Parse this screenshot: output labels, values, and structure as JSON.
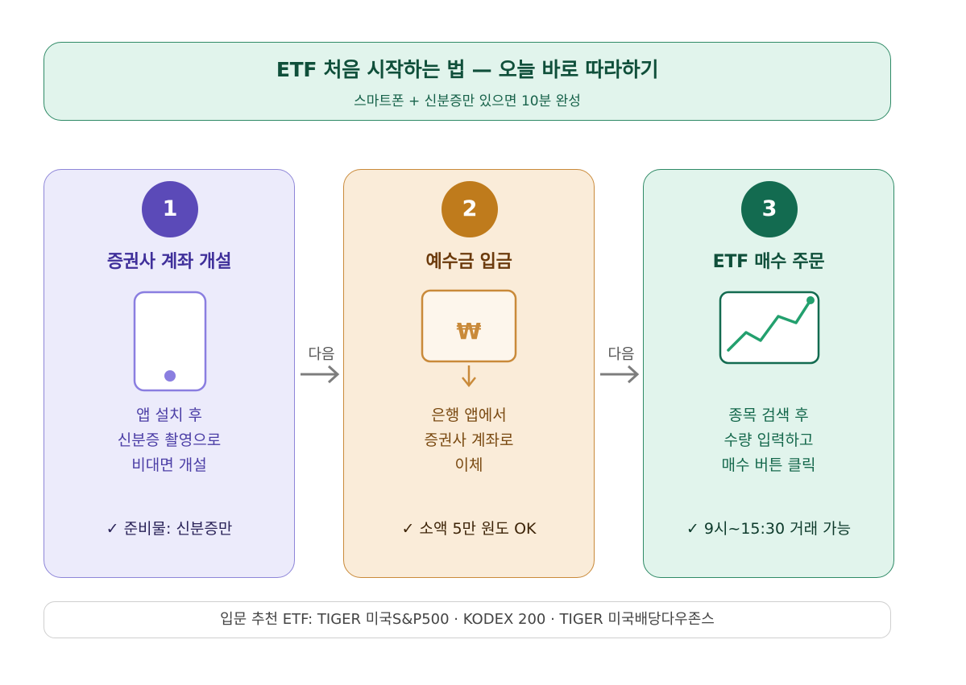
{
  "header": {
    "title": "ETF 처음 시작하는 법 — 오늘 바로 따라하기",
    "subtitle": "스마트폰 + 신분증만 있으면 10분 완성"
  },
  "steps": [
    {
      "number": "1",
      "title": "증권사 계좌 개설",
      "icon": "smartphone-icon",
      "desc": [
        "앱 설치 후",
        "신분증 촬영으로",
        "비대면 개설"
      ],
      "note": "✓ 준비물: 신분증만",
      "color": "#5b4ab8"
    },
    {
      "number": "2",
      "title": "예수금 입금",
      "icon": "won-deposit-icon",
      "icon_symbol": "₩",
      "desc": [
        "은행 앱에서",
        "증권사 계좌로",
        "이체"
      ],
      "note": "✓ 소액 5만 원도 OK",
      "color": "#bf7b1c"
    },
    {
      "number": "3",
      "title": "ETF 매수 주문",
      "icon": "rising-chart-icon",
      "desc": [
        "종목 검색 후",
        "수량 입력하고",
        "매수 버튼 클릭"
      ],
      "note": "✓ 9시~15:30 거래 가능",
      "color": "#136b50"
    }
  ],
  "connectors": [
    {
      "label": "다음"
    },
    {
      "label": "다음"
    }
  ],
  "footer": {
    "text": "입문 추천 ETF: TIGER 미국S&P500 · KODEX 200 · TIGER 미국배당다우존스"
  }
}
